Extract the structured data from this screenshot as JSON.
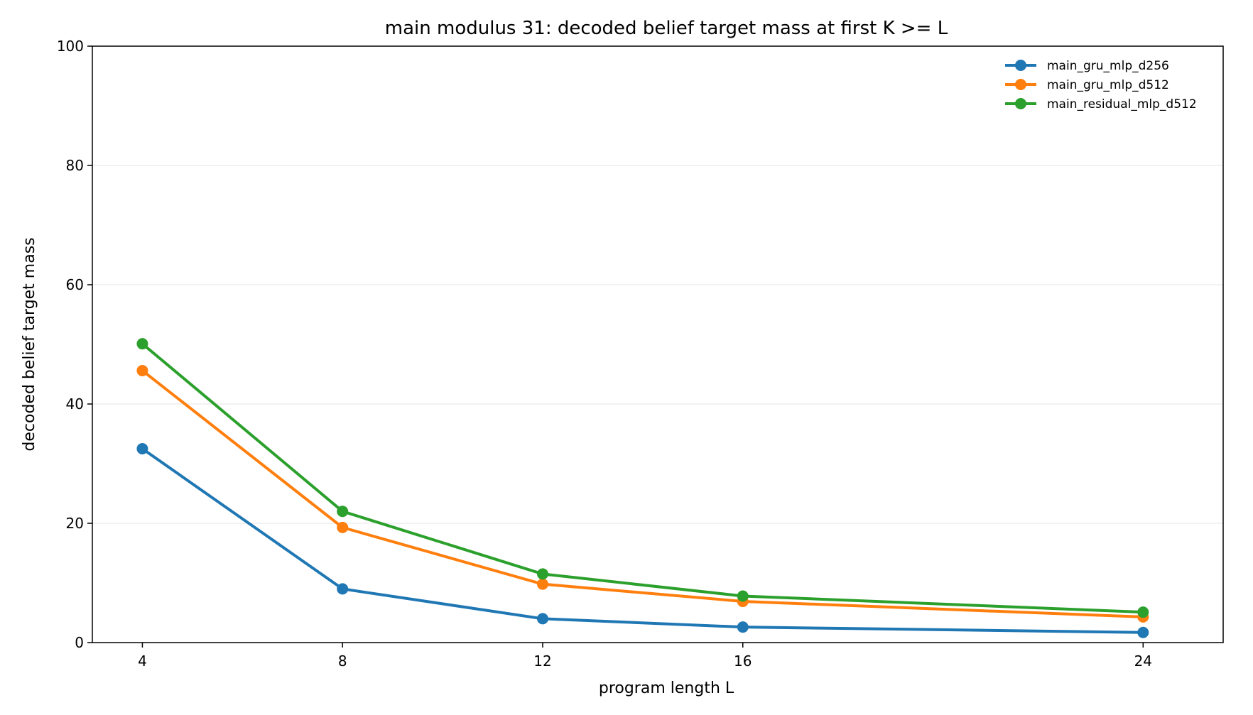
{
  "chart_data": {
    "type": "line",
    "title": "main modulus 31: decoded belief target mass at first K >= L",
    "xlabel": "program length L",
    "ylabel": "decoded belief target mass",
    "x": [
      4,
      8,
      12,
      16,
      24
    ],
    "xticks": [
      "4",
      "8",
      "12",
      "16",
      "24"
    ],
    "xlim": [
      3,
      25.6
    ],
    "ylim": [
      0,
      100
    ],
    "yticks": [
      "0",
      "20",
      "40",
      "60",
      "80",
      "100"
    ],
    "grid": "horizontal",
    "legend_position": "top-right",
    "series": [
      {
        "name": "main_gru_mlp_d256",
        "color": "#1f77b4",
        "values": [
          32.5,
          9.0,
          4.0,
          2.6,
          1.7
        ]
      },
      {
        "name": "main_gru_mlp_d512",
        "color": "#ff7f0e",
        "values": [
          45.6,
          19.3,
          9.8,
          6.9,
          4.3
        ]
      },
      {
        "name": "main_residual_mlp_d512",
        "color": "#2ca02c",
        "values": [
          50.1,
          22.0,
          11.5,
          7.8,
          5.1
        ]
      }
    ]
  }
}
